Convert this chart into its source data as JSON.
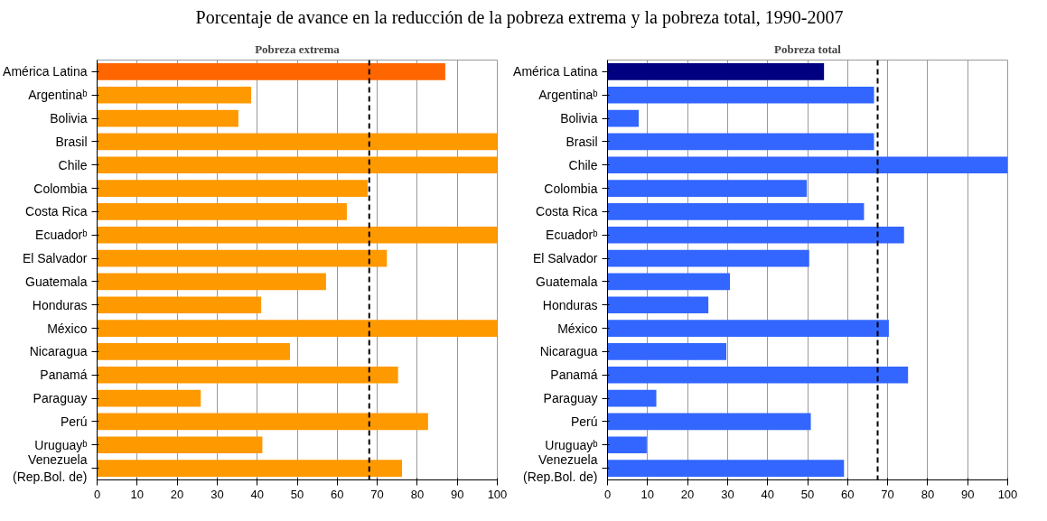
{
  "chart_data": [
    {
      "type": "bar",
      "orientation": "horizontal",
      "title": "Porcentaje de avance en la reducción de la pobreza extrema y la pobreza total, 1990-2007",
      "subtitle": "Pobreza extrema",
      "categories": [
        "América Latina",
        "Argentinaᵇ",
        "Bolivia",
        "Brasil",
        "Chile",
        "Colombia",
        "Costa Rica",
        "Ecuadorᵇ",
        "El Salvador",
        "Guatemala",
        "Honduras",
        "México",
        "Nicaragua",
        "Panamá",
        "Paraguay",
        "Perú",
        "Uruguayᵇ",
        "Venezuela\n(Rep.Bol. de)"
      ],
      "values": [
        87,
        38.5,
        35.3,
        100,
        100,
        67.6,
        62.4,
        100,
        72.4,
        57.2,
        41,
        100,
        48.2,
        75.2,
        25.9,
        82.7,
        41.3,
        76.2
      ],
      "colors": [
        "#ff6600",
        "#ff9900",
        "#ff9900",
        "#ff9900",
        "#ff9900",
        "#ff9900",
        "#ff9900",
        "#ff9900",
        "#ff9900",
        "#ff9900",
        "#ff9900",
        "#ff9900",
        "#ff9900",
        "#ff9900",
        "#ff9900",
        "#ff9900",
        "#ff9900",
        "#ff9900"
      ],
      "xlim": [
        0,
        100
      ],
      "xticks": [
        0,
        10,
        20,
        30,
        40,
        50,
        60,
        70,
        80,
        90,
        100
      ],
      "grid": "x",
      "ref_lines": [
        {
          "axis": "x",
          "value": 68,
          "line_style": "dashed",
          "color": "#000000"
        }
      ]
    },
    {
      "type": "bar",
      "orientation": "horizontal",
      "title": "Pobreza total",
      "categories": [
        "América Latina",
        "Argentinaᵇ",
        "Bolivia",
        "Brasil",
        "Chile",
        "Colombia",
        "Costa Rica",
        "Ecuadorᵇ",
        "El Salvador",
        "Guatemala",
        "Honduras",
        "México",
        "Nicaragua",
        "Panamá",
        "Paraguay",
        "Perú",
        "Uruguayᵇ",
        "Venezuela\n(Rep.Bol. de)"
      ],
      "values": [
        54.1,
        66.6,
        7.8,
        66.6,
        100,
        49.8,
        64.1,
        74.1,
        50.4,
        30.6,
        25.2,
        70.3,
        29.7,
        75.1,
        12.2,
        50.8,
        9.8,
        59.1
      ],
      "colors": [
        "#000080",
        "#3366ff",
        "#3366ff",
        "#3366ff",
        "#3366ff",
        "#3366ff",
        "#3366ff",
        "#3366ff",
        "#3366ff",
        "#3366ff",
        "#3366ff",
        "#3366ff",
        "#3366ff",
        "#3366ff",
        "#3366ff",
        "#3366ff",
        "#3366ff",
        "#3366ff"
      ],
      "xlim": [
        0,
        100
      ],
      "xticks": [
        0,
        10,
        20,
        30,
        40,
        50,
        60,
        70,
        80,
        90,
        100
      ],
      "grid": "x",
      "ref_lines": [
        {
          "axis": "x",
          "value": 67.5,
          "line_style": "dashed",
          "color": "#000000"
        }
      ]
    }
  ]
}
